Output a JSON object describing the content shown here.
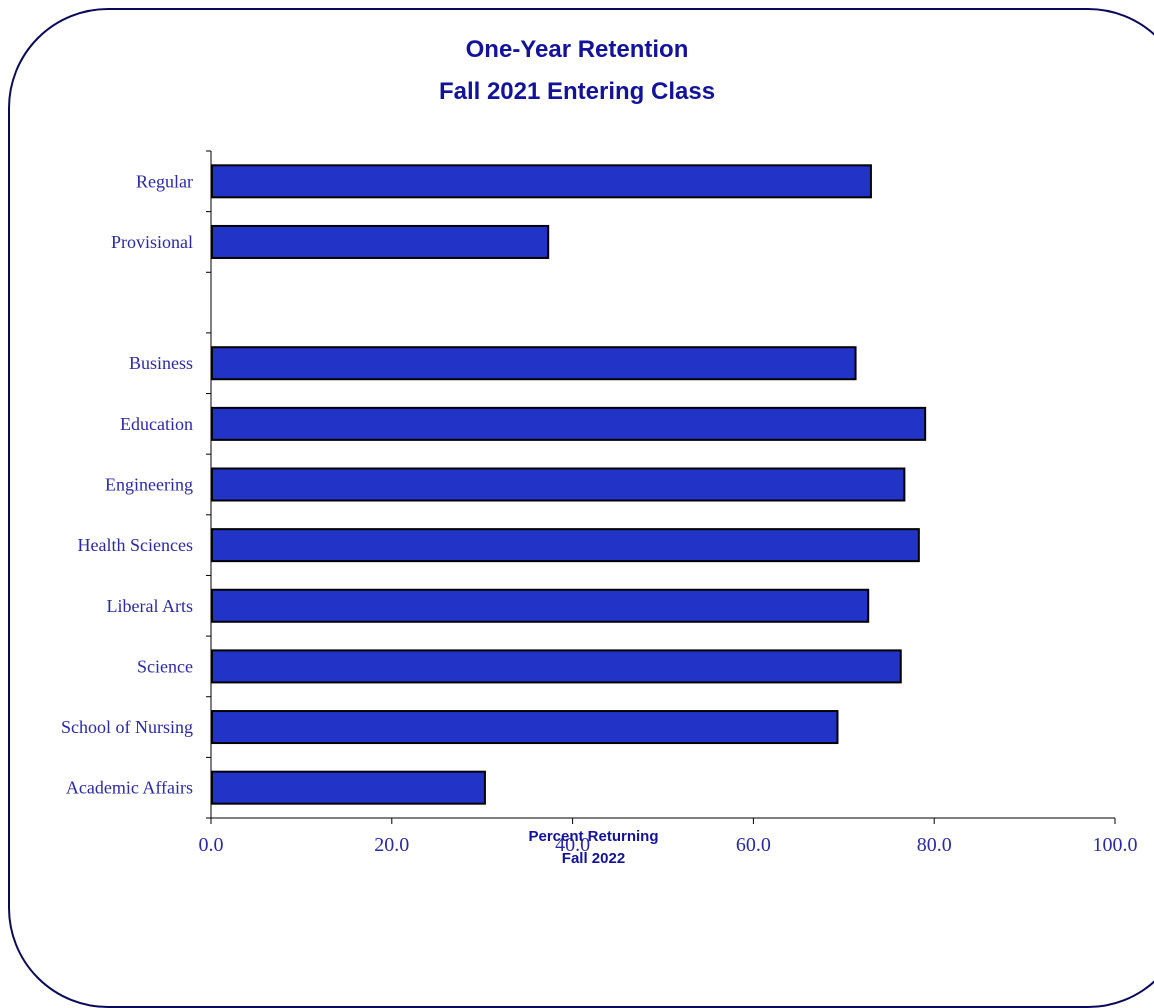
{
  "chart_data": {
    "type": "bar",
    "orientation": "horizontal",
    "title": [
      "One-Year Retention",
      "Fall 2021 Entering Class"
    ],
    "xlabel": [
      "Percent Returning",
      "Fall 2022"
    ],
    "ylabel": "",
    "xlim": [
      0,
      100
    ],
    "xticks": [
      "0.0",
      "20.0",
      "40.0",
      "60.0",
      "80.0",
      "100.0"
    ],
    "grid": false,
    "legend": "none",
    "bar_color": "#2233c8",
    "bar_border_color": "#000000",
    "text_color": "#2a2aa8",
    "categories": [
      "Regular",
      "Provisional",
      "",
      "Business",
      "Education",
      "Engineering",
      "Health Sciences",
      "Liberal Arts",
      "Science",
      "School of Nursing",
      "Academic Affairs"
    ],
    "values": [
      73.0,
      37.3,
      null,
      71.3,
      79.0,
      76.7,
      78.3,
      72.7,
      76.3,
      69.3,
      30.3
    ]
  }
}
